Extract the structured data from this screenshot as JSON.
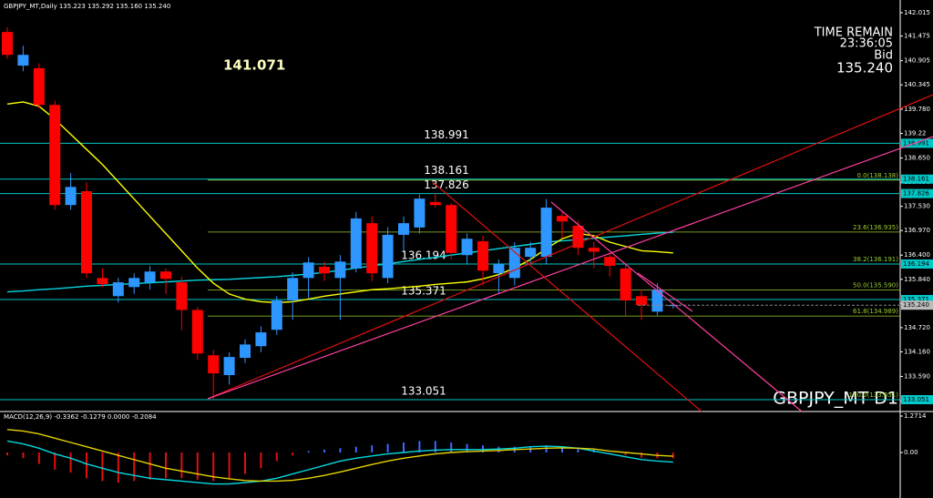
{
  "chart_data": {
    "type": "candlestick",
    "title": "GBPJPY_MT,Daily  135.223 135.292 135.160 135.240",
    "up_color": "#2e96ff",
    "down_color": "#ff0000",
    "open": [
      141.57,
      140.79,
      140.73,
      139.88,
      137.56,
      137.88,
      135.87,
      135.45,
      135.66,
      135.77,
      136.02,
      135.77,
      135.13,
      134.08,
      133.62,
      134.02,
      134.29,
      134.67,
      135.35,
      135.87,
      136.13,
      135.87,
      136.09,
      137.14,
      135.87,
      136.87,
      137.04,
      137.63,
      137.56,
      136.4,
      136.72,
      135.98,
      135.87,
      136.36,
      136.36,
      137.31,
      137.08,
      136.57,
      136.36,
      136.09,
      135.45,
      135.09,
      135.223
    ],
    "high": [
      141.68,
      141.25,
      140.84,
      139.98,
      138.3,
      138.09,
      136.09,
      135.87,
      135.98,
      136.15,
      136.09,
      135.9,
      135.2,
      134.2,
      134.15,
      134.45,
      134.75,
      135.45,
      136.0,
      136.35,
      136.25,
      136.4,
      137.4,
      137.3,
      137.05,
      137.3,
      137.8,
      137.826,
      137.6,
      136.9,
      136.85,
      136.3,
      136.7,
      136.7,
      137.7,
      137.4,
      137.2,
      136.7,
      136.45,
      136.194,
      135.6,
      135.75,
      135.292
    ],
    "low": [
      140.95,
      140.66,
      139.8,
      137.45,
      137.45,
      135.87,
      135.66,
      135.3,
      135.5,
      135.6,
      135.5,
      134.66,
      133.98,
      133.051,
      133.4,
      133.9,
      134.15,
      134.55,
      134.9,
      135.4,
      135.8,
      134.9,
      136.0,
      135.8,
      135.75,
      136.5,
      136.9,
      137.5,
      136.3,
      136.2,
      135.7,
      135.5,
      135.7,
      136.2,
      136.2,
      136.8,
      136.4,
      136.1,
      135.9,
      135.0,
      134.9,
      135.0,
      135.16
    ],
    "close": [
      141.04,
      141.04,
      139.88,
      137.56,
      137.98,
      135.98,
      135.73,
      135.77,
      135.87,
      136.02,
      135.85,
      135.13,
      134.12,
      133.66,
      134.04,
      134.33,
      134.61,
      135.35,
      135.87,
      136.23,
      135.98,
      136.25,
      137.25,
      135.98,
      136.87,
      137.14,
      137.71,
      137.56,
      136.45,
      136.78,
      136.04,
      136.19,
      136.57,
      136.57,
      137.5,
      137.18,
      136.57,
      136.48,
      136.15,
      135.35,
      135.24,
      135.6,
      135.24
    ],
    "overlays": [
      {
        "color": "#00d8e0",
        "values": [
          135.55,
          135.57,
          135.6,
          135.62,
          135.65,
          135.68,
          135.7,
          135.72,
          135.74,
          135.76,
          135.78,
          135.8,
          135.82,
          135.83,
          135.84,
          135.86,
          135.88,
          135.9,
          135.93,
          135.96,
          136.0,
          136.05,
          136.1,
          136.15,
          136.2,
          136.25,
          136.3,
          136.35,
          136.4,
          136.45,
          136.5,
          136.55,
          136.6,
          136.65,
          136.7,
          136.73,
          136.76,
          136.79,
          136.82,
          136.85,
          136.88,
          136.91,
          136.93
        ]
      },
      {
        "color": "#ffff00",
        "values": [
          139.9,
          139.95,
          139.85,
          139.55,
          139.2,
          138.85,
          138.5,
          138.1,
          137.7,
          137.3,
          136.9,
          136.5,
          136.1,
          135.75,
          135.5,
          135.38,
          135.32,
          135.3,
          135.32,
          135.38,
          135.45,
          135.5,
          135.55,
          135.6,
          135.62,
          135.65,
          135.68,
          135.72,
          135.75,
          135.78,
          135.85,
          135.95,
          136.1,
          136.3,
          136.55,
          136.78,
          136.9,
          136.85,
          136.7,
          136.6,
          136.5,
          136.48,
          136.45
        ]
      }
    ],
    "ylim": [
      132.777,
      142.226
    ],
    "yticks": [
      142.015,
      141.475,
      140.905,
      140.345,
      {
        "value": 139.78,
        "label": "139.780"
      },
      139.22,
      {
        "value": 138.65,
        "label": "138.650"
      },
      {
        "value": 138.09,
        "label": "138.090"
      },
      {
        "value": 137.53,
        "label": "137.530"
      },
      {
        "value": 136.97,
        "label": "136.970"
      },
      {
        "value": 136.4,
        "label": "136.400"
      },
      {
        "value": 135.84,
        "label": "135.840"
      },
      {
        "value": 135.28,
        "label": "135.280"
      },
      {
        "value": 134.72,
        "label": "134.720"
      },
      {
        "value": 134.16,
        "label": "134.160"
      },
      {
        "value": 133.59,
        "label": "133.590"
      },
      {
        "value": 133.03,
        "label": "133.030"
      }
    ],
    "levels": [
      138.991,
      138.161,
      137.826,
      136.194,
      135.371,
      133.051
    ],
    "level_color": "#00c8c8",
    "fib_color": "#9acd32",
    "fib_levels": [
      {
        "value": 138.138,
        "label": "0.0(138.138)"
      },
      {
        "value": 136.935,
        "label": "23.6(136.935)"
      },
      {
        "value": 136.191,
        "label": "38.2(136.191)"
      },
      {
        "value": 135.59,
        "label": "50.0(135.590)"
      },
      {
        "value": 134.989,
        "label": "61.8(134.989)"
      },
      {
        "value": 133.051,
        "label": "100.0(133.051)"
      }
    ],
    "peak_label": "141.071",
    "timer_title": "TIME REMAIN",
    "timer": "23:36:05",
    "bid_label": "Bid",
    "bid": {
      "value": 135.24,
      "label": "135.240"
    },
    "symbol": "GBPJPY_MT D1",
    "macd": {
      "title": "MACD(12,26,9) -0.3362 -0.1279 0.0000 -0.2084",
      "ylim": [
        -1.526,
        1.399
      ],
      "yticks": [
        1.2714,
        {
          "value": 0,
          "label": "0.00"
        }
      ],
      "histogram": {
        "up_color": "#3a6cff",
        "down_color": "#e01010",
        "values": [
          -0.1,
          -0.2,
          -0.4,
          -0.6,
          -0.7,
          -0.9,
          -1.0,
          -1.05,
          -1.0,
          -0.95,
          -0.9,
          -0.9,
          -0.95,
          -1.0,
          -0.9,
          -0.75,
          -0.55,
          -0.3,
          -0.1,
          0.05,
          0.1,
          0.15,
          0.2,
          0.25,
          0.3,
          0.35,
          0.4,
          0.4,
          0.35,
          0.3,
          0.25,
          0.2,
          0.2,
          0.2,
          0.25,
          0.2,
          0.15,
          0.1,
          0.0,
          -0.1,
          -0.18,
          -0.2,
          -0.2084
        ]
      },
      "lines": [
        {
          "color": "#00d8e0",
          "values": [
            0.4,
            0.3,
            0.15,
            -0.05,
            -0.2,
            -0.4,
            -0.55,
            -0.7,
            -0.8,
            -0.9,
            -0.95,
            -1.0,
            -1.05,
            -1.1,
            -1.1,
            -1.05,
            -1.0,
            -0.9,
            -0.75,
            -0.6,
            -0.45,
            -0.3,
            -0.2,
            -0.12,
            -0.05,
            0,
            0.05,
            0.08,
            0.1,
            0.1,
            0.1,
            0.12,
            0.15,
            0.2,
            0.22,
            0.2,
            0.15,
            0.05,
            -0.05,
            -0.15,
            -0.25,
            -0.3,
            -0.3362
          ]
        },
        {
          "color": "#e6d200",
          "values": [
            0.8,
            0.75,
            0.65,
            0.5,
            0.35,
            0.2,
            0.05,
            -0.1,
            -0.25,
            -0.4,
            -0.55,
            -0.65,
            -0.75,
            -0.85,
            -0.92,
            -0.98,
            -1.0,
            -1.0,
            -0.97,
            -0.9,
            -0.8,
            -0.68,
            -0.55,
            -0.42,
            -0.3,
            -0.2,
            -0.12,
            -0.05,
            0,
            0.03,
            0.05,
            0.07,
            0.1,
            0.12,
            0.15,
            0.16,
            0.15,
            0.12,
            0.05,
            0,
            -0.05,
            -0.1,
            -0.1279
          ]
        }
      ]
    }
  }
}
